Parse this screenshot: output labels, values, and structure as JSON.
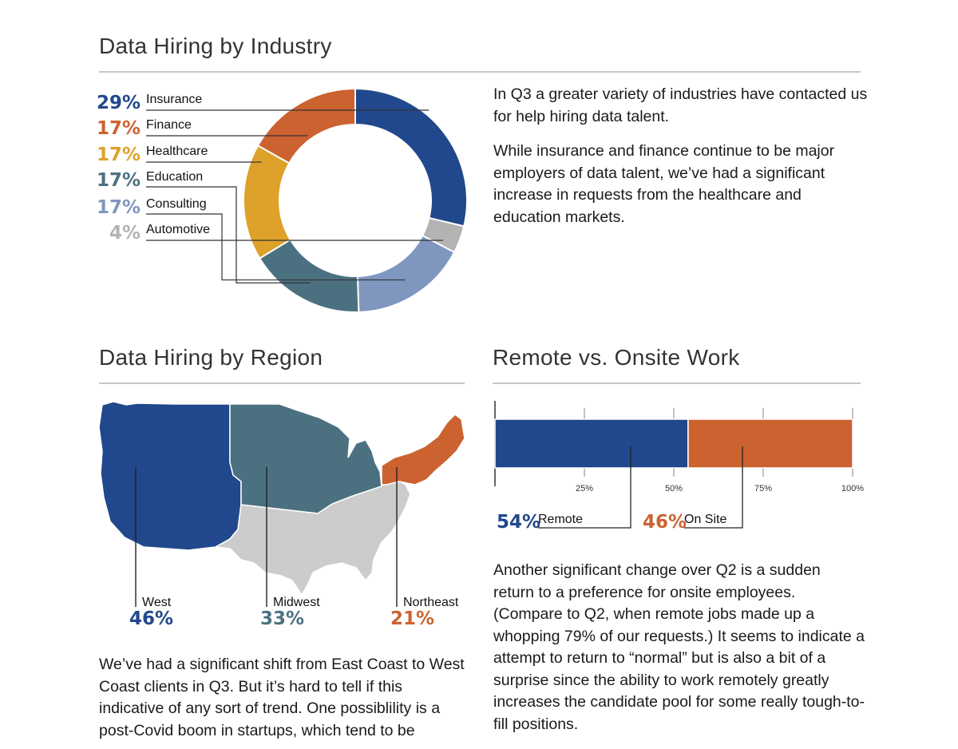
{
  "colors": {
    "insurance": "#21488c",
    "finance": "#cc6230",
    "healthcare": "#dea12a",
    "education": "#4b7180",
    "consulting": "#7f96bf",
    "automotive": "#b3b3b3",
    "west": "#21488c",
    "midwest": "#4b7180",
    "northeast": "#cc6230",
    "other_region": "#cccccc",
    "remote": "#21488c",
    "onsite": "#cc6230"
  },
  "industry": {
    "title": "Data Hiring by Industry",
    "para1": "In Q3 a greater variety of industries have contacted us for help hiring data talent.",
    "para2": "While insurance and finance continue to be major employers of data talent, we’ve had a significant increase in requests from the healthcare and education markets."
  },
  "region": {
    "title": "Data Hiring by Region",
    "para": "We’ve had a significant shift from East Coast to West Coast clients in Q3. But it’s hard to tell if this indicative of any sort of trend. One possiblility is a post-Covid boom in startups, which tend to be"
  },
  "remote": {
    "title": "Remote vs. Onsite Work",
    "para": "Another significant change over Q2 is a sudden return to a preference for onsite employees. (Compare to Q2, when remote jobs made up a whopping 79% of our requests.) It seems to indicate a attempt to return to “normal” but is also a bit of a surprise since the ability to work remotely greatly increases the candidate pool for some really tough-to-fill positions."
  },
  "chart_data": [
    {
      "type": "pie",
      "categories": [
        "Insurance",
        "Finance",
        "Healthcare",
        "Education",
        "Consulting",
        "Automotive"
      ],
      "values": [
        29,
        17,
        17,
        17,
        17,
        4
      ],
      "labels": [
        "29%",
        "17%",
        "17%",
        "17%",
        "17%",
        "4%"
      ]
    },
    {
      "type": "bar",
      "categories": [
        "West",
        "Midwest",
        "Northeast"
      ],
      "values": [
        46,
        33,
        21
      ],
      "labels": [
        "46%",
        "33%",
        "21%"
      ]
    },
    {
      "type": "bar",
      "categories": [
        "Remote",
        "On Site"
      ],
      "values": [
        54,
        46
      ],
      "labels": [
        "54%",
        "46%"
      ],
      "ticks": [
        "25%",
        "50%",
        "75%",
        "100%"
      ],
      "tick_values": [
        25,
        50,
        75,
        100
      ],
      "xlim": [
        0,
        100
      ]
    }
  ]
}
